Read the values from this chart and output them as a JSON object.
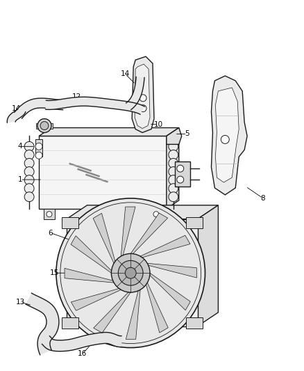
{
  "bg_color": "#ffffff",
  "line_color": "#1a1a1a",
  "label_color": "#000000",
  "figsize": [
    4.38,
    5.33
  ],
  "dpi": 100,
  "label_fs": 7.5
}
